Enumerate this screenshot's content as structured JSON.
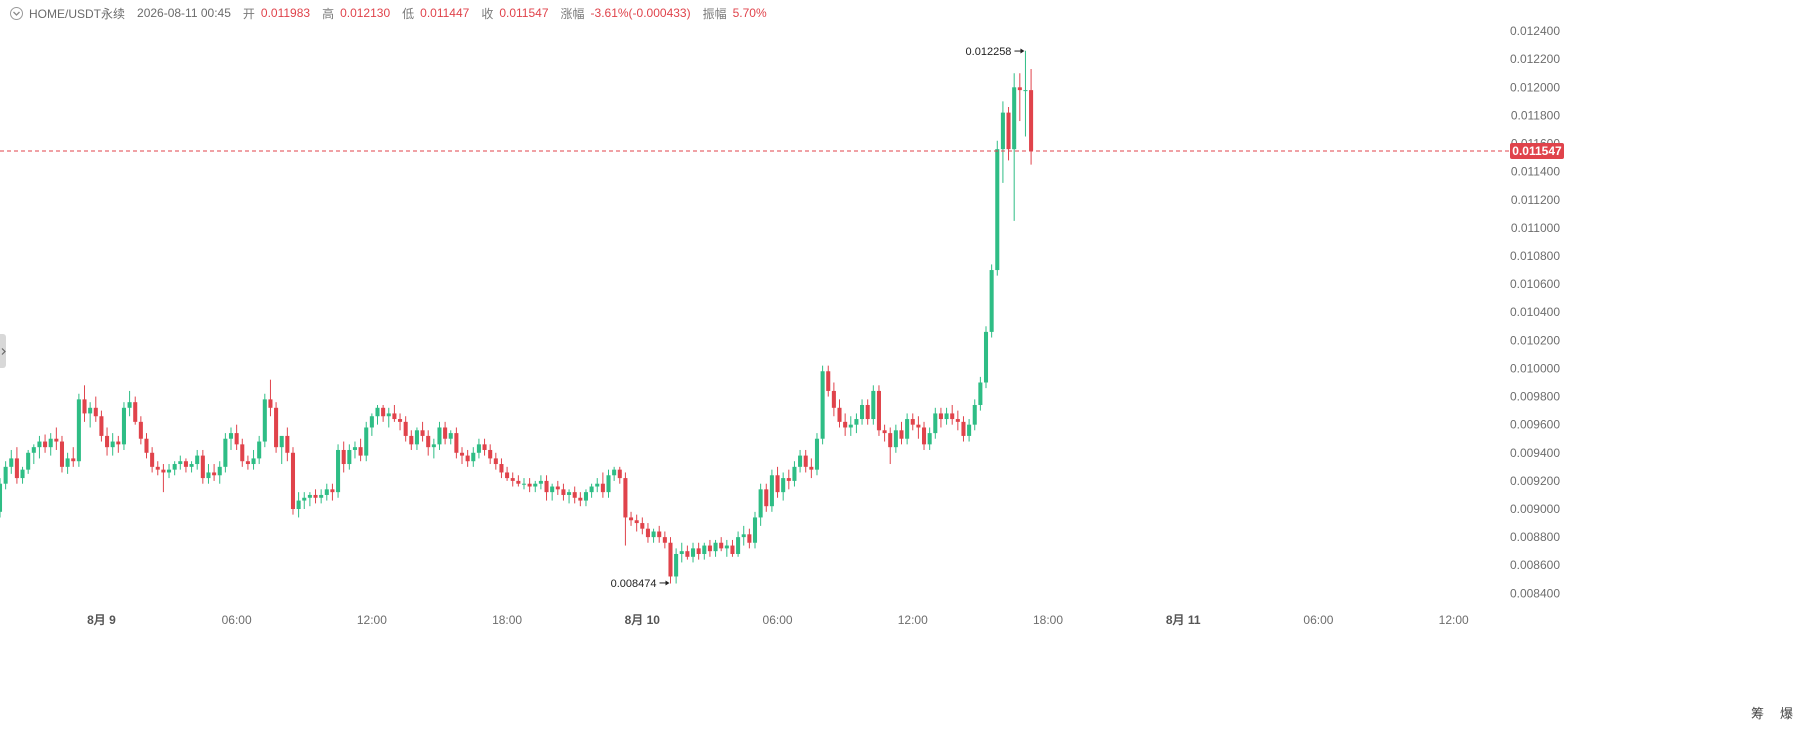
{
  "legend": {
    "symbol": "HOME/USDT永续",
    "datetime": "2026-08-11 00:45",
    "open_label": "开",
    "open": "0.011983",
    "high_label": "高",
    "high": "0.012130",
    "low_label": "低",
    "low": "0.011447",
    "close_label": "收",
    "close": "0.011547",
    "change_label": "涨幅",
    "change": "-3.61%(-0.000433)",
    "amplitude_label": "振幅",
    "amplitude": "5.70%"
  },
  "toggle_icon": "chevron-down-circle-icon",
  "current_price_tag": "0.011547",
  "high_marker": "0.012258",
  "low_marker": "0.008474",
  "corner_buttons": [
    "筹",
    "爆"
  ],
  "colors": {
    "up": "#2ebd85",
    "down": "#e0434b",
    "current_line": "#e0434b"
  },
  "chart_data": {
    "type": "candlestick",
    "symbol": "HOME/USDT永续",
    "interval": "15m",
    "y_ticks": [
      0.0084,
      0.0086,
      0.0088,
      0.009,
      0.0092,
      0.0094,
      0.0096,
      0.0098,
      0.01,
      0.0102,
      0.0104,
      0.0106,
      0.0108,
      0.011,
      0.0112,
      0.0114,
      0.0116,
      0.0118,
      0.012,
      0.0122,
      0.0124
    ],
    "y_tick_labels": [
      "0.008400",
      "0.008600",
      "0.008800",
      "0.009000",
      "0.009200",
      "0.009400",
      "0.009600",
      "0.009800",
      "0.010000",
      "0.010200",
      "0.010400",
      "0.010600",
      "0.010800",
      "0.011000",
      "0.011200",
      "0.011400",
      "0.011600",
      "0.011800",
      "0.012000",
      "0.012200",
      "0.012400"
    ],
    "ylim": [
      0.00831,
      0.01255
    ],
    "x_ticks": [
      {
        "label": "8月 9",
        "hour": 0,
        "bold": true
      },
      {
        "label": "06:00",
        "hour": 6,
        "bold": false
      },
      {
        "label": "12:00",
        "hour": 12,
        "bold": false
      },
      {
        "label": "18:00",
        "hour": 18,
        "bold": false
      },
      {
        "label": "8月 10",
        "hour": 24,
        "bold": true
      },
      {
        "label": "06:00",
        "hour": 30,
        "bold": false
      },
      {
        "label": "12:00",
        "hour": 36,
        "bold": false
      },
      {
        "label": "18:00",
        "hour": 42,
        "bold": false
      },
      {
        "label": "8月 11",
        "hour": 48,
        "bold": true
      },
      {
        "label": "06:00",
        "hour": 54,
        "bold": false
      },
      {
        "label": "12:00",
        "hour": 60,
        "bold": false
      }
    ],
    "x_range_hours": [
      -4.5,
      62.5
    ],
    "current_price": 0.011547,
    "high_price": 0.012258,
    "low_price": 0.008474,
    "candles_start_hour": -4.5,
    "candle_interval_hours": 0.25,
    "candles": [
      [
        0.00898,
        0.00922,
        0.00894,
        0.00918
      ],
      [
        0.00918,
        0.00934,
        0.00914,
        0.0093
      ],
      [
        0.0093,
        0.00942,
        0.00925,
        0.00936
      ],
      [
        0.00936,
        0.00944,
        0.00918,
        0.00922
      ],
      [
        0.00922,
        0.0093,
        0.00918,
        0.00928
      ],
      [
        0.00928,
        0.00942,
        0.00925,
        0.0094
      ],
      [
        0.0094,
        0.00946,
        0.00932,
        0.00944
      ],
      [
        0.00944,
        0.00952,
        0.00936,
        0.00948
      ],
      [
        0.00948,
        0.00953,
        0.0094,
        0.00944
      ],
      [
        0.00944,
        0.00954,
        0.00938,
        0.0095
      ],
      [
        0.0095,
        0.00958,
        0.00942,
        0.00948
      ],
      [
        0.00948,
        0.00952,
        0.00926,
        0.0093
      ],
      [
        0.0093,
        0.0094,
        0.00925,
        0.00936
      ],
      [
        0.00936,
        0.00944,
        0.0093,
        0.00934
      ],
      [
        0.00934,
        0.00982,
        0.0093,
        0.00978
      ],
      [
        0.00978,
        0.00988,
        0.00962,
        0.00968
      ],
      [
        0.00968,
        0.00976,
        0.00958,
        0.00972
      ],
      [
        0.00972,
        0.0098,
        0.00962,
        0.00966
      ],
      [
        0.00966,
        0.0097,
        0.00948,
        0.00952
      ],
      [
        0.00952,
        0.00958,
        0.00938,
        0.00944
      ],
      [
        0.00944,
        0.00954,
        0.00938,
        0.00948
      ],
      [
        0.00948,
        0.00952,
        0.0094,
        0.00946
      ],
      [
        0.00946,
        0.00976,
        0.00942,
        0.00972
      ],
      [
        0.00972,
        0.00984,
        0.00966,
        0.00976
      ],
      [
        0.00976,
        0.0098,
        0.0096,
        0.00962
      ],
      [
        0.00962,
        0.00966,
        0.00946,
        0.0095
      ],
      [
        0.0095,
        0.00954,
        0.00936,
        0.0094
      ],
      [
        0.0094,
        0.00944,
        0.00926,
        0.0093
      ],
      [
        0.0093,
        0.00934,
        0.00924,
        0.00928
      ],
      [
        0.00928,
        0.00932,
        0.00912,
        0.00926
      ],
      [
        0.00926,
        0.00932,
        0.00922,
        0.00928
      ],
      [
        0.00928,
        0.00934,
        0.00924,
        0.00932
      ],
      [
        0.00932,
        0.00938,
        0.00928,
        0.00934
      ],
      [
        0.00934,
        0.00936,
        0.00926,
        0.0093
      ],
      [
        0.0093,
        0.00934,
        0.00926,
        0.00932
      ],
      [
        0.00932,
        0.00942,
        0.00928,
        0.00938
      ],
      [
        0.00938,
        0.00942,
        0.00918,
        0.00922
      ],
      [
        0.00922,
        0.00932,
        0.00918,
        0.00926
      ],
      [
        0.00926,
        0.00932,
        0.0092,
        0.00924
      ],
      [
        0.00924,
        0.00934,
        0.00918,
        0.0093
      ],
      [
        0.0093,
        0.00954,
        0.00926,
        0.0095
      ],
      [
        0.0095,
        0.00958,
        0.00942,
        0.00954
      ],
      [
        0.00954,
        0.0096,
        0.00942,
        0.00946
      ],
      [
        0.00946,
        0.0095,
        0.0093,
        0.00934
      ],
      [
        0.00934,
        0.00938,
        0.00928,
        0.00932
      ],
      [
        0.00932,
        0.00942,
        0.00928,
        0.00936
      ],
      [
        0.00936,
        0.00952,
        0.00932,
        0.00948
      ],
      [
        0.00948,
        0.00982,
        0.00944,
        0.00978
      ],
      [
        0.00978,
        0.00992,
        0.00966,
        0.00972
      ],
      [
        0.00972,
        0.00976,
        0.0094,
        0.00944
      ],
      [
        0.00944,
        0.0095,
        0.00932,
        0.00952
      ],
      [
        0.00952,
        0.00958,
        0.00934,
        0.0094
      ],
      [
        0.0094,
        0.00944,
        0.00896,
        0.009
      ],
      [
        0.009,
        0.00912,
        0.00894,
        0.00906
      ],
      [
        0.00906,
        0.00912,
        0.009,
        0.00908
      ],
      [
        0.00908,
        0.00912,
        0.00902,
        0.0091
      ],
      [
        0.0091,
        0.00914,
        0.00904,
        0.00908
      ],
      [
        0.00908,
        0.00914,
        0.00904,
        0.0091
      ],
      [
        0.0091,
        0.00918,
        0.00906,
        0.00914
      ],
      [
        0.00914,
        0.00918,
        0.00906,
        0.00912
      ],
      [
        0.00912,
        0.00946,
        0.00908,
        0.00942
      ],
      [
        0.00942,
        0.00948,
        0.00926,
        0.00932
      ],
      [
        0.00932,
        0.00946,
        0.00928,
        0.00942
      ],
      [
        0.00942,
        0.00948,
        0.00936,
        0.00944
      ],
      [
        0.00944,
        0.0095,
        0.00934,
        0.00938
      ],
      [
        0.00938,
        0.00962,
        0.00934,
        0.00958
      ],
      [
        0.00958,
        0.00968,
        0.00952,
        0.00966
      ],
      [
        0.00966,
        0.00974,
        0.0096,
        0.00972
      ],
      [
        0.00972,
        0.00974,
        0.00962,
        0.00966
      ],
      [
        0.00966,
        0.00972,
        0.00958,
        0.00968
      ],
      [
        0.00968,
        0.00974,
        0.00962,
        0.00964
      ],
      [
        0.00964,
        0.00968,
        0.00956,
        0.00962
      ],
      [
        0.00962,
        0.00966,
        0.00948,
        0.00952
      ],
      [
        0.00952,
        0.00956,
        0.00942,
        0.00946
      ],
      [
        0.00946,
        0.00958,
        0.00942,
        0.00956
      ],
      [
        0.00956,
        0.00962,
        0.00948,
        0.00952
      ],
      [
        0.00952,
        0.00956,
        0.00938,
        0.00944
      ],
      [
        0.00944,
        0.0095,
        0.00936,
        0.00946
      ],
      [
        0.00946,
        0.00962,
        0.00942,
        0.00958
      ],
      [
        0.00958,
        0.00962,
        0.00946,
        0.0095
      ],
      [
        0.0095,
        0.00956,
        0.00946,
        0.00954
      ],
      [
        0.00954,
        0.00958,
        0.00936,
        0.0094
      ],
      [
        0.0094,
        0.00944,
        0.00932,
        0.00938
      ],
      [
        0.00938,
        0.00942,
        0.0093,
        0.00934
      ],
      [
        0.00934,
        0.00944,
        0.0093,
        0.0094
      ],
      [
        0.0094,
        0.0095,
        0.00936,
        0.00946
      ],
      [
        0.00946,
        0.0095,
        0.00938,
        0.00942
      ],
      [
        0.00942,
        0.00946,
        0.00932,
        0.00936
      ],
      [
        0.00936,
        0.0094,
        0.00928,
        0.00932
      ],
      [
        0.00932,
        0.00936,
        0.00922,
        0.00926
      ],
      [
        0.00926,
        0.0093,
        0.0092,
        0.00922
      ],
      [
        0.00922,
        0.00926,
        0.00916,
        0.0092
      ],
      [
        0.0092,
        0.00924,
        0.00916,
        0.00918
      ],
      [
        0.00918,
        0.00922,
        0.00914,
        0.00918
      ],
      [
        0.00918,
        0.00922,
        0.00912,
        0.00916
      ],
      [
        0.00916,
        0.0092,
        0.00912,
        0.00918
      ],
      [
        0.00918,
        0.00924,
        0.00914,
        0.0092
      ],
      [
        0.0092,
        0.00924,
        0.00906,
        0.00912
      ],
      [
        0.00912,
        0.00918,
        0.00906,
        0.00916
      ],
      [
        0.00916,
        0.0092,
        0.0091,
        0.00914
      ],
      [
        0.00914,
        0.00918,
        0.00906,
        0.0091
      ],
      [
        0.0091,
        0.00914,
        0.00904,
        0.00912
      ],
      [
        0.00912,
        0.00916,
        0.00904,
        0.00908
      ],
      [
        0.00908,
        0.00912,
        0.00902,
        0.00906
      ],
      [
        0.00906,
        0.00914,
        0.00902,
        0.00912
      ],
      [
        0.00912,
        0.00918,
        0.00908,
        0.00916
      ],
      [
        0.00916,
        0.00922,
        0.00912,
        0.00918
      ],
      [
        0.00918,
        0.00926,
        0.00908,
        0.00912
      ],
      [
        0.00912,
        0.00928,
        0.00908,
        0.00924
      ],
      [
        0.00924,
        0.0093,
        0.0092,
        0.00928
      ],
      [
        0.00928,
        0.0093,
        0.00918,
        0.00922
      ],
      [
        0.00922,
        0.00926,
        0.00874,
        0.00894
      ],
      [
        0.00894,
        0.00898,
        0.00888,
        0.00892
      ],
      [
        0.00892,
        0.00896,
        0.00884,
        0.0089
      ],
      [
        0.0089,
        0.00894,
        0.00882,
        0.00886
      ],
      [
        0.00886,
        0.0089,
        0.00876,
        0.0088
      ],
      [
        0.0088,
        0.00886,
        0.00876,
        0.00884
      ],
      [
        0.00884,
        0.00888,
        0.00876,
        0.0088
      ],
      [
        0.0088,
        0.00884,
        0.00872,
        0.00876
      ],
      [
        0.00876,
        0.0088,
        0.00847,
        0.00852
      ],
      [
        0.00852,
        0.00872,
        0.00847,
        0.00868
      ],
      [
        0.00868,
        0.00876,
        0.00862,
        0.0087
      ],
      [
        0.0087,
        0.00874,
        0.00864,
        0.00866
      ],
      [
        0.00866,
        0.00876,
        0.00862,
        0.00872
      ],
      [
        0.00872,
        0.00876,
        0.00864,
        0.00868
      ],
      [
        0.00868,
        0.00876,
        0.00864,
        0.00874
      ],
      [
        0.00874,
        0.00878,
        0.00866,
        0.0087
      ],
      [
        0.0087,
        0.00878,
        0.00866,
        0.00876
      ],
      [
        0.00876,
        0.0088,
        0.0087,
        0.00872
      ],
      [
        0.00872,
        0.00878,
        0.00866,
        0.00874
      ],
      [
        0.00874,
        0.00878,
        0.00866,
        0.00868
      ],
      [
        0.00868,
        0.00884,
        0.00866,
        0.0088
      ],
      [
        0.0088,
        0.00888,
        0.00874,
        0.00882
      ],
      [
        0.00882,
        0.00886,
        0.00872,
        0.00876
      ],
      [
        0.00876,
        0.00898,
        0.00872,
        0.00894
      ],
      [
        0.00894,
        0.00918,
        0.00888,
        0.00914
      ],
      [
        0.00914,
        0.00918,
        0.00898,
        0.00902
      ],
      [
        0.00902,
        0.00928,
        0.00898,
        0.00924
      ],
      [
        0.00924,
        0.0093,
        0.00908,
        0.00912
      ],
      [
        0.00912,
        0.00926,
        0.00906,
        0.00922
      ],
      [
        0.00922,
        0.00928,
        0.00914,
        0.0092
      ],
      [
        0.0092,
        0.00934,
        0.00916,
        0.0093
      ],
      [
        0.0093,
        0.00942,
        0.00926,
        0.00938
      ],
      [
        0.00938,
        0.00942,
        0.00926,
        0.0093
      ],
      [
        0.0093,
        0.00936,
        0.00922,
        0.00928
      ],
      [
        0.00928,
        0.00954,
        0.00924,
        0.0095
      ],
      [
        0.0095,
        0.01002,
        0.00946,
        0.00998
      ],
      [
        0.00998,
        0.01002,
        0.0098,
        0.00984
      ],
      [
        0.00984,
        0.0099,
        0.00966,
        0.00972
      ],
      [
        0.00972,
        0.00978,
        0.00958,
        0.00962
      ],
      [
        0.00962,
        0.00968,
        0.00952,
        0.00958
      ],
      [
        0.00958,
        0.00966,
        0.00952,
        0.0096
      ],
      [
        0.0096,
        0.00968,
        0.00954,
        0.00964
      ],
      [
        0.00964,
        0.00978,
        0.0096,
        0.00974
      ],
      [
        0.00974,
        0.00978,
        0.0096,
        0.00964
      ],
      [
        0.00964,
        0.00988,
        0.0096,
        0.00984
      ],
      [
        0.00984,
        0.00988,
        0.00952,
        0.00956
      ],
      [
        0.00956,
        0.0096,
        0.00948,
        0.00954
      ],
      [
        0.00954,
        0.00958,
        0.00932,
        0.00944
      ],
      [
        0.00944,
        0.0096,
        0.0094,
        0.00956
      ],
      [
        0.00956,
        0.00962,
        0.00946,
        0.0095
      ],
      [
        0.0095,
        0.00968,
        0.00946,
        0.00964
      ],
      [
        0.00964,
        0.00968,
        0.00956,
        0.0096
      ],
      [
        0.0096,
        0.00966,
        0.0095,
        0.00958
      ],
      [
        0.00958,
        0.00962,
        0.00942,
        0.00946
      ],
      [
        0.00946,
        0.00958,
        0.00942,
        0.00954
      ],
      [
        0.00954,
        0.00972,
        0.0095,
        0.00968
      ],
      [
        0.00968,
        0.00972,
        0.00958,
        0.00964
      ],
      [
        0.00964,
        0.00972,
        0.0096,
        0.00968
      ],
      [
        0.00968,
        0.00974,
        0.0096,
        0.00964
      ],
      [
        0.00964,
        0.0097,
        0.00956,
        0.00962
      ],
      [
        0.00962,
        0.00966,
        0.00948,
        0.00952
      ],
      [
        0.00952,
        0.00964,
        0.00948,
        0.0096
      ],
      [
        0.0096,
        0.00978,
        0.00956,
        0.00974
      ],
      [
        0.00974,
        0.00994,
        0.0097,
        0.0099
      ],
      [
        0.0099,
        0.0103,
        0.00986,
        0.01026
      ],
      [
        0.01026,
        0.01074,
        0.01022,
        0.0107
      ],
      [
        0.0107,
        0.01162,
        0.01066,
        0.01156
      ],
      [
        0.01156,
        0.0119,
        0.01132,
        0.01182
      ],
      [
        0.01182,
        0.01186,
        0.01148,
        0.01156
      ],
      [
        0.01156,
        0.0121,
        0.01105,
        0.012
      ],
      [
        0.012,
        0.0121,
        0.01176,
        0.01198
      ],
      [
        0.01198,
        0.01226,
        0.01165,
        0.01198
      ],
      [
        0.01198,
        0.01213,
        0.01145,
        0.01155
      ]
    ]
  }
}
